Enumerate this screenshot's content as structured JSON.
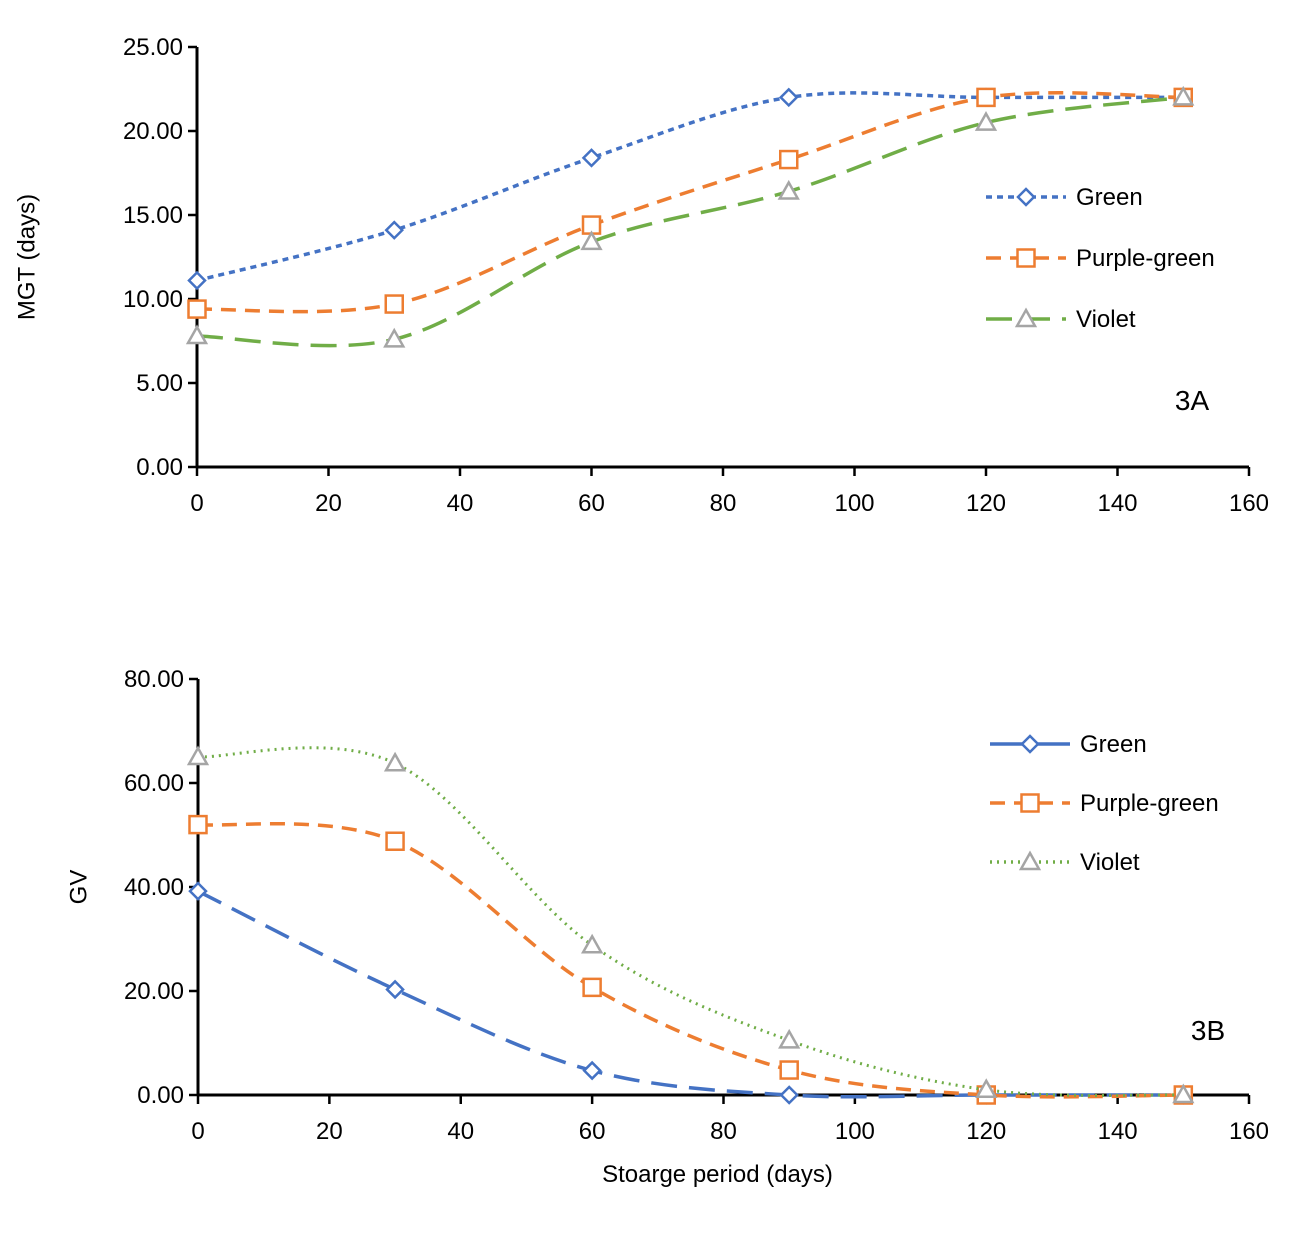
{
  "chart_data": [
    {
      "type": "line",
      "panel_label": "3A",
      "xlabel": "",
      "ylabel": "MGT (days)",
      "xlim": [
        0,
        160
      ],
      "ylim": [
        0,
        25
      ],
      "x_ticks": [
        0,
        20,
        40,
        60,
        80,
        100,
        120,
        140,
        160
      ],
      "y_ticks": [
        0,
        5,
        10,
        15,
        20,
        25
      ],
      "x_tick_labels": [
        "0",
        "20",
        "40",
        "60",
        "80",
        "100",
        "120",
        "140",
        "160"
      ],
      "y_tick_labels": [
        "0.00",
        "5.00",
        "10.00",
        "15.00",
        "20.00",
        "25.00"
      ],
      "grid": false,
      "legend_position": "right",
      "x": [
        0,
        30,
        60,
        90,
        120,
        150
      ],
      "series": [
        {
          "name": "Green",
          "values": [
            11.1,
            14.1,
            18.4,
            22.0,
            22.0,
            22.0
          ],
          "color": "#4472C4",
          "marker": "diamond",
          "dash": "short-dash"
        },
        {
          "name": "Purple-green",
          "values": [
            9.4,
            9.7,
            14.4,
            18.3,
            22.0,
            22.0
          ],
          "color": "#ED7D31",
          "marker": "square",
          "dash": "dash"
        },
        {
          "name": "Violet",
          "values": [
            7.8,
            7.6,
            13.4,
            16.4,
            20.5,
            22.0
          ],
          "color": "#70AD47",
          "marker": "triangle",
          "marker_color": "#A5A5A5",
          "dash": "long-dash"
        }
      ]
    },
    {
      "type": "line",
      "panel_label": "3B",
      "xlabel": "Stoarge period (days)",
      "ylabel": "GV",
      "xlim": [
        0,
        160
      ],
      "ylim": [
        0,
        80
      ],
      "x_ticks": [
        0,
        20,
        40,
        60,
        80,
        100,
        120,
        140,
        160
      ],
      "y_ticks": [
        0,
        20,
        40,
        60,
        80
      ],
      "x_tick_labels": [
        "0",
        "20",
        "40",
        "60",
        "80",
        "100",
        "120",
        "140",
        "160"
      ],
      "y_tick_labels": [
        "0.00",
        "20.00",
        "40.00",
        "60.00",
        "80.00"
      ],
      "grid": false,
      "legend_position": "top-right",
      "x": [
        0,
        30,
        60,
        90,
        120,
        150
      ],
      "series": [
        {
          "name": "Green",
          "values": [
            39.2,
            20.3,
            4.7,
            0.0,
            0.0,
            0.0
          ],
          "color": "#4472C4",
          "marker": "diamond",
          "dash": "long-dash",
          "legend_dash": "solid"
        },
        {
          "name": "Purple-green",
          "values": [
            52.0,
            48.8,
            20.7,
            4.8,
            0.0,
            0.0
          ],
          "color": "#ED7D31",
          "marker": "square",
          "dash": "dash"
        },
        {
          "name": "Violet",
          "values": [
            65.0,
            63.8,
            28.8,
            10.5,
            1.0,
            0.0
          ],
          "color": "#70AD47",
          "marker": "triangle",
          "marker_color": "#A5A5A5",
          "dash": "dot"
        }
      ]
    }
  ]
}
